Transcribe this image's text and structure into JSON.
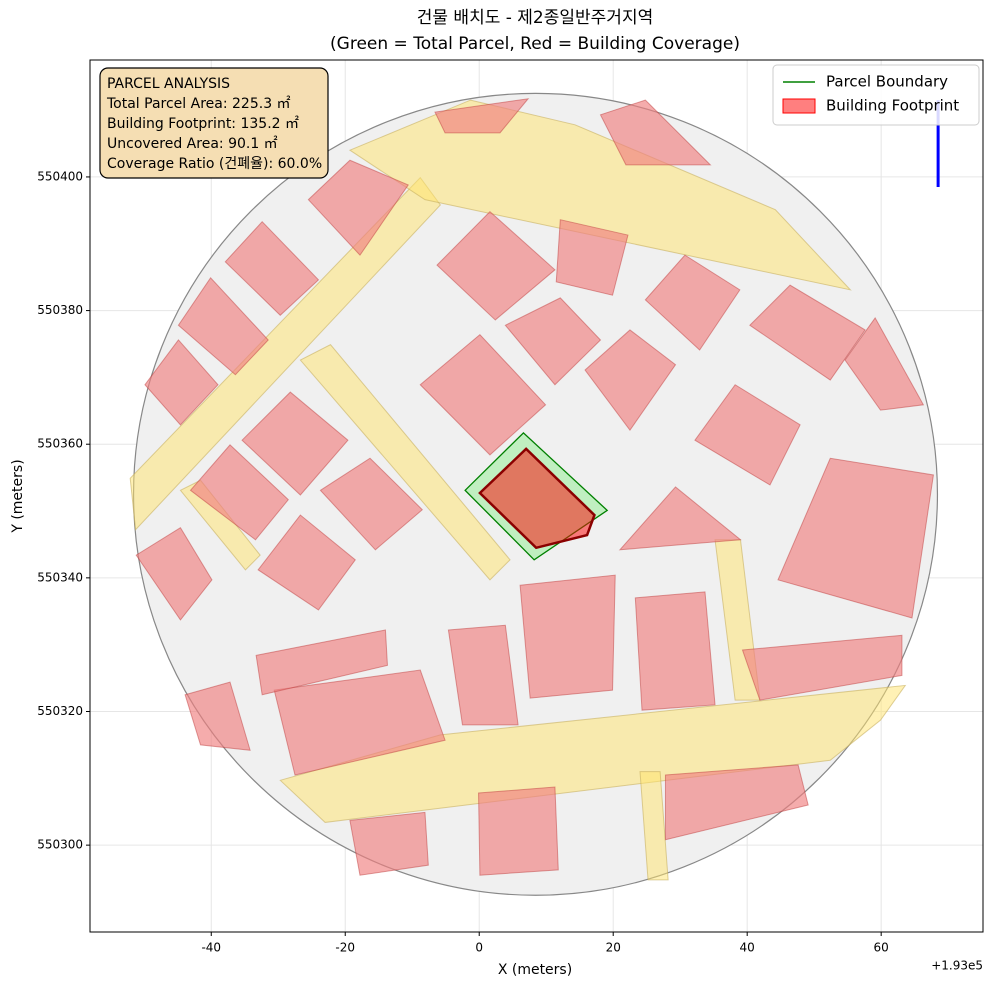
{
  "chart_data": {
    "type": "polygon",
    "title": "건물 배치도 - 제2종일반주거지역",
    "subtitle": "(Green = Total Parcel, Red = Building Coverage)",
    "x_label": "X (meters)",
    "y_label": "Y (meters)",
    "x_offset_label": "+1.93e5",
    "xlim": [
      -58.1,
      75.2
    ],
    "ylim": [
      550287,
      550417.5
    ],
    "xticks": [
      -40,
      -20,
      0,
      20,
      40,
      60
    ],
    "yticks": [
      550300,
      550320,
      550340,
      550360,
      550380,
      550400
    ],
    "grid": true,
    "legend_position": "upper right",
    "info_box": [
      "PARCEL ANALYSIS",
      "Total Parcel Area: 225.3 ㎡",
      "Building Footprint: 135.2 ㎡",
      "Uncovered Area: 90.1 ㎡",
      "Coverage Ratio (건폐율): 60.0%"
    ],
    "series": [
      {
        "name": "Parcel Boundary",
        "color": "#008000",
        "fill": "#90ee90",
        "x": [
          -2.1,
          6.6,
          19.1,
          8.2
        ],
        "y": [
          550353.1,
          550361.7,
          550350.1,
          550342.7
        ]
      },
      {
        "name": "Building Footprint",
        "color": "#8b0000",
        "fill": "#ff0000",
        "x": [
          0.1,
          7.0,
          17.2,
          16.1,
          8.5
        ],
        "y": [
          550352.7,
          550359.3,
          550349.4,
          550346.4,
          550344.5
        ]
      }
    ],
    "site": {
      "center": [
        8.4,
        550352.5
      ],
      "radius": 60,
      "color": "#f0f0f0"
    },
    "north_arrow": {
      "color": "#0000ff",
      "x": [
        68.5,
        68.5
      ],
      "y": [
        550398.5,
        550411.5
      ]
    },
    "roads": {
      "color": "#ffe46b",
      "shapes": [
        {
          "x": [
            -52.1,
            -51.3,
            -5.8,
            -8.8
          ],
          "y": [
            550354.9,
            550347.2,
            550395.8,
            550399.9
          ]
        },
        {
          "x": [
            -19.3,
            -1.3,
            14.3,
            44.2,
            55.4,
            -8.1
          ],
          "y": [
            550404.0,
            550411.5,
            550407.8,
            550395.1,
            550383.1,
            550396.6
          ]
        },
        {
          "x": [
            -26.7,
            -22.2,
            4.6,
            1.6
          ],
          "y": [
            550372.6,
            550374.9,
            550342.7,
            550339.7
          ]
        },
        {
          "x": [
            -44.6,
            -41.6,
            -32.7,
            -34.9
          ],
          "y": [
            550353.1,
            550354.6,
            550343.4,
            550341.2
          ]
        },
        {
          "x": [
            -29.7,
            -23.0,
            52.4,
            59.9,
            63.6,
            -5.8
          ],
          "y": [
            550309.7,
            550303.4,
            550312.7,
            550318.7,
            550323.9,
            550316.5
          ]
        },
        {
          "x": [
            35.2,
            39.0,
            41.9,
            38.2
          ],
          "y": [
            550345.7,
            550345.7,
            550321.7,
            550321.7
          ]
        },
        {
          "x": [
            24.0,
            27.0,
            28.2,
            25.2
          ],
          "y": [
            550311.0,
            550311.0,
            550294.8,
            550294.8
          ]
        }
      ]
    },
    "buildings": {
      "color": "#f08080",
      "shapes": [
        {
          "x": [
            -25.5,
            -19.3,
            -10.6,
            -17.8
          ],
          "y": [
            550396.6,
            550402.5,
            550398.8,
            550388.3
          ]
        },
        {
          "x": [
            -37.9,
            -32.4,
            -24.0,
            -29.7
          ],
          "y": [
            550387.3,
            550393.3,
            550384.6,
            550379.3
          ]
        },
        {
          "x": [
            -44.9,
            -40.1,
            -31.5,
            -36.4
          ],
          "y": [
            550377.8,
            550384.9,
            550375.6,
            550370.4
          ]
        },
        {
          "x": [
            -49.9,
            -44.9,
            -39.0,
            -44.6
          ],
          "y": [
            550368.9,
            550375.6,
            550368.9,
            550362.9
          ]
        },
        {
          "x": [
            -6.3,
            1.6,
            11.3,
            2.4
          ],
          "y": [
            550386.8,
            550394.8,
            550386.1,
            550378.6
          ]
        },
        {
          "x": [
            12.1,
            22.2,
            19.9,
            11.5
          ],
          "y": [
            550393.6,
            550391.3,
            550382.3,
            550384.3
          ]
        },
        {
          "x": [
            24.8,
            30.7,
            38.9,
            32.9
          ],
          "y": [
            550381.6,
            550388.3,
            550383.1,
            550374.1
          ]
        },
        {
          "x": [
            40.4,
            46.4,
            57.6,
            52.4
          ],
          "y": [
            550377.8,
            550383.8,
            550377.1,
            550369.6
          ]
        },
        {
          "x": [
            -8.8,
            0.1,
            9.9,
            1.6
          ],
          "y": [
            550368.9,
            550376.4,
            550365.9,
            550358.4
          ]
        },
        {
          "x": [
            3.9,
            12.1,
            18.1,
            11.3
          ],
          "y": [
            550377.8,
            550381.9,
            550375.6,
            550368.9
          ]
        },
        {
          "x": [
            15.8,
            22.5,
            29.3,
            22.5
          ],
          "y": [
            550371.1,
            550377.1,
            550371.9,
            550362.1
          ]
        },
        {
          "x": [
            32.2,
            38.2,
            47.9,
            43.4
          ],
          "y": [
            550360.6,
            550368.9,
            550362.9,
            550353.9
          ]
        },
        {
          "x": [
            44.6,
            52.4,
            67.8,
            64.6
          ],
          "y": [
            550339.7,
            550357.9,
            550355.4,
            550334.0
          ]
        },
        {
          "x": [
            -35.4,
            -28.2,
            -19.6,
            -26.7
          ],
          "y": [
            550360.6,
            550367.8,
            550360.6,
            550352.4
          ]
        },
        {
          "x": [
            -43.1,
            -37.2,
            -28.5,
            -33.4
          ],
          "y": [
            550353.1,
            550359.9,
            550351.7,
            550345.7
          ]
        },
        {
          "x": [
            -23.7,
            -16.3,
            -8.5,
            -15.5
          ],
          "y": [
            550353.1,
            550357.9,
            550350.2,
            550344.2
          ]
        },
        {
          "x": [
            -33.0,
            -26.7,
            -18.5,
            -24.0
          ],
          "y": [
            550341.2,
            550349.4,
            550342.7,
            550335.2
          ]
        },
        {
          "x": [
            6.1,
            20.3,
            19.9,
            7.6
          ],
          "y": [
            550338.9,
            550340.4,
            550323.2,
            550322.0
          ]
        },
        {
          "x": [
            23.3,
            33.7,
            35.2,
            24.3
          ],
          "y": [
            550337.0,
            550337.9,
            550321.0,
            550320.2
          ]
        },
        {
          "x": [
            -4.6,
            3.9,
            5.8,
            -2.5
          ],
          "y": [
            550332.2,
            550332.9,
            550318.0,
            550318.0
          ]
        },
        {
          "x": [
            -30.6,
            -8.8,
            -5.1,
            -27.5
          ],
          "y": [
            550323.2,
            550326.2,
            550315.7,
            550310.5
          ]
        },
        {
          "x": [
            -33.3,
            -14.0,
            -13.7,
            -32.4
          ],
          "y": [
            550328.4,
            550332.2,
            550326.9,
            550322.5
          ]
        },
        {
          "x": [
            27.8,
            47.6,
            49.1,
            27.8
          ],
          "y": [
            550310.5,
            550312.0,
            550306.0,
            550300.8
          ]
        },
        {
          "x": [
            -0.1,
            11.3,
            11.8,
            0.1
          ],
          "y": [
            550307.8,
            550308.7,
            550296.3,
            550295.5
          ]
        },
        {
          "x": [
            -19.3,
            -8.1,
            -7.6,
            -17.8
          ],
          "y": [
            550303.7,
            550304.9,
            550297.0,
            550295.5
          ]
        },
        {
          "x": [
            39.3,
            63.1,
            63.1,
            41.9
          ],
          "y": [
            550329.2,
            550331.4,
            550325.4,
            550321.7
          ]
        },
        {
          "x": [
            -43.9,
            -37.2,
            -34.2,
            -41.6
          ],
          "y": [
            550322.5,
            550324.4,
            550314.2,
            550315.0
          ]
        },
        {
          "x": [
            -51.2,
            -44.6,
            -39.9,
            -44.6
          ],
          "y": [
            550343.4,
            550347.5,
            550339.7,
            550333.7
          ]
        },
        {
          "x": [
            18.1,
            24.8,
            34.5,
            21.9
          ],
          "y": [
            550409.3,
            550411.5,
            550401.8,
            550401.8
          ]
        },
        {
          "x": [
            -6.6,
            7.3,
            3.1,
            -5.1
          ],
          "y": [
            550409.7,
            550411.7,
            550406.6,
            550406.6
          ]
        },
        {
          "x": [
            54.6,
            59.1,
            66.3,
            59.9
          ],
          "y": [
            550372.6,
            550378.9,
            550365.9,
            550365.1
          ]
        },
        {
          "x": [
            21.0,
            29.3,
            39.0
          ],
          "y": [
            550344.2,
            550353.6,
            550345.7
          ]
        }
      ]
    }
  }
}
